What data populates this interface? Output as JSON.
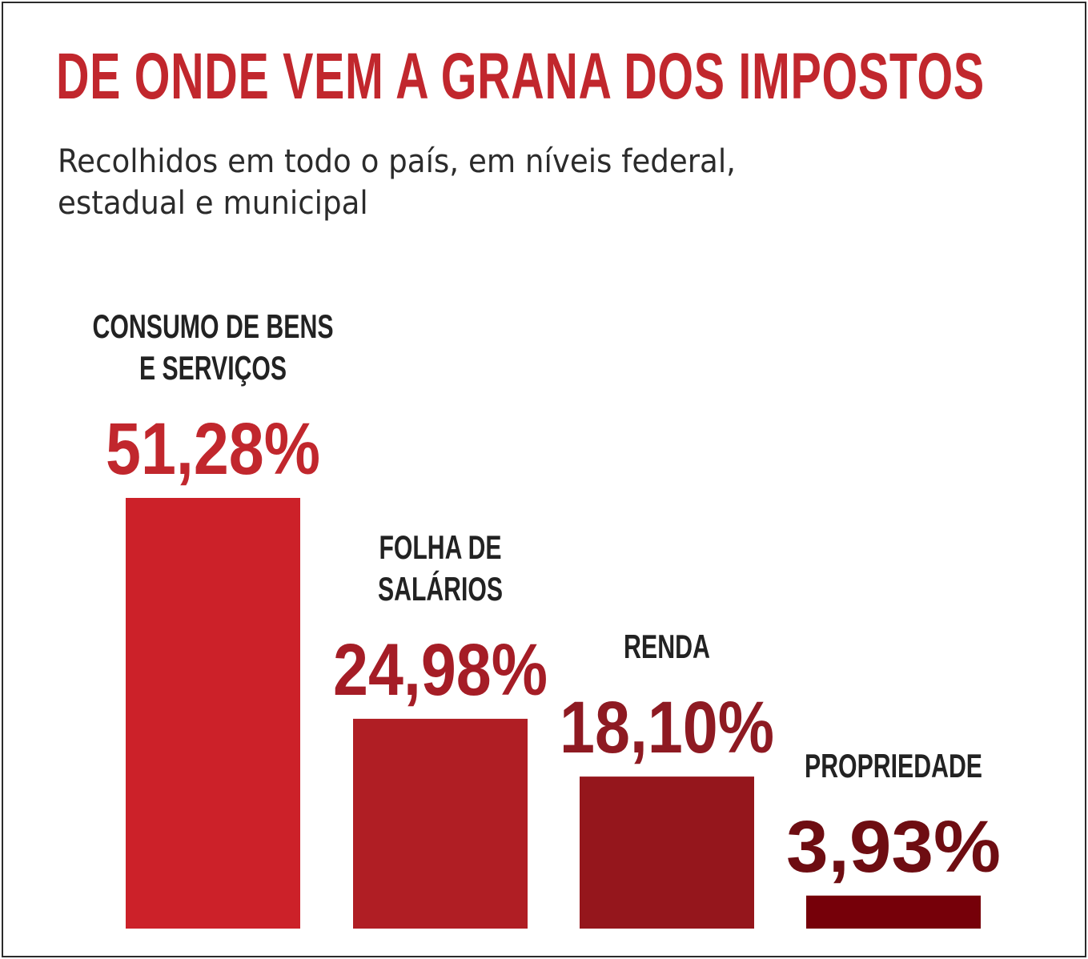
{
  "title": "DE ONDE VEM A GRANA DOS IMPOSTOS",
  "subtitle": "Recolhidos em todo o país, em níveis federal, estadual e municipal",
  "chart_data": {
    "type": "bar",
    "categories": [
      [
        "CONSUMO DE BENS",
        "E SERVIÇOS"
      ],
      [
        "FOLHA DE",
        "SALÁRIOS"
      ],
      [
        "RENDA"
      ],
      [
        "PROPRIEDADE"
      ]
    ],
    "values": [
      51.28,
      24.98,
      18.1,
      3.93
    ],
    "value_labels": [
      "51,28%",
      "24,98%",
      "18,10%",
      "3,93%"
    ],
    "bar_colors": [
      "#cc2129",
      "#b01e24",
      "#95161c",
      "#760009"
    ],
    "value_label_colors": [
      "#c1272d",
      "#a51d26",
      "#8e1a22",
      "#6e0d12"
    ],
    "ylim": [
      0,
      51.28
    ],
    "grid": false
  }
}
